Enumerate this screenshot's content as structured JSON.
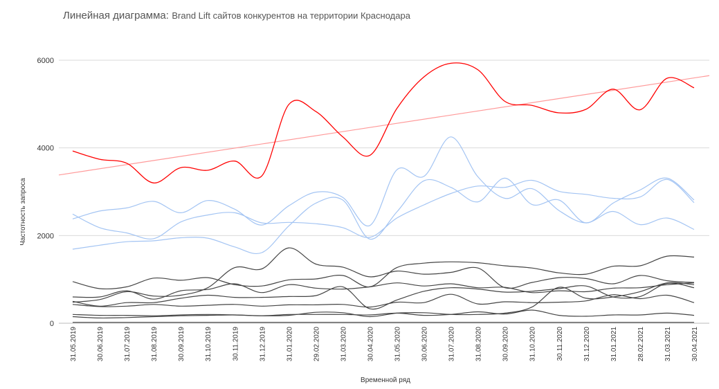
{
  "chart_title": "Линейная диаграмма:",
  "chart_subtitle": "Brand Lift сайтов конкурентов на территории Краснодара",
  "chart_data": {
    "type": "line",
    "title": "Линейная диаграмма: Brand Lift сайтов конкурентов на территории Краснодара",
    "xlabel": "Временной ряд",
    "ylabel": "Частотность запроса",
    "ylim": [
      0,
      6000
    ],
    "yticks": [
      0,
      2000,
      4000,
      6000
    ],
    "grid": true,
    "legend": "none",
    "categories": [
      "31.05.2019",
      "30.06.2019",
      "31.07.2019",
      "31.08.2019",
      "30.09.2019",
      "31.10.2019",
      "30.11.2019",
      "31.12.2019",
      "31.01.2020",
      "29.02.2020",
      "31.03.2020",
      "30.04.2020",
      "31.05.2020",
      "30.06.2020",
      "31.07.2020",
      "31.08.2020",
      "30.09.2020",
      "31.10.2020",
      "30.11.2020",
      "31.12.2020",
      "31.01.2021",
      "28.02.2021",
      "31.03.2021",
      "30.04.2021"
    ],
    "series": [
      {
        "color": "#ff0000",
        "values": [
          3930,
          3740,
          3650,
          3200,
          3550,
          3490,
          3700,
          3360,
          4990,
          4830,
          4250,
          3830,
          4900,
          5620,
          5930,
          5780,
          5060,
          4970,
          4800,
          4880,
          5340,
          4870,
          5590,
          5370
        ]
      },
      {
        "color": "#ff9999",
        "trend": true,
        "values": [
          3430,
          3524,
          3618,
          3713,
          3807,
          3901,
          3995,
          4089,
          4183,
          4278,
          4372,
          4466,
          4560,
          4654,
          4748,
          4843,
          4937,
          5031,
          5125,
          5219,
          5313,
          5408,
          5502,
          5596
        ]
      },
      {
        "color": "#a3c4f3",
        "values": [
          2490,
          2180,
          2060,
          1930,
          2310,
          2470,
          2520,
          2290,
          2300,
          2270,
          2180,
          1960,
          2400,
          2700,
          2960,
          3130,
          3100,
          3260,
          3010,
          2940,
          2850,
          2880,
          3280,
          2750
        ]
      },
      {
        "color": "#a3c4f3",
        "values": [
          2380,
          2560,
          2630,
          2780,
          2520,
          2800,
          2600,
          2240,
          2680,
          2990,
          2870,
          2230,
          3500,
          3350,
          4250,
          3340,
          2850,
          3070,
          2570,
          2290,
          2550,
          2250,
          2400,
          2140
        ]
      },
      {
        "color": "#a3c4f3",
        "values": [
          1690,
          1780,
          1860,
          1880,
          1950,
          1940,
          1740,
          1610,
          2220,
          2740,
          2810,
          1920,
          2540,
          3250,
          3100,
          2770,
          3310,
          2710,
          2810,
          2290,
          2740,
          3040,
          3310,
          2810
        ]
      },
      {
        "color": "#444444",
        "values": [
          950,
          790,
          830,
          1030,
          980,
          1040,
          880,
          850,
          990,
          1010,
          1090,
          830,
          1270,
          1370,
          1400,
          1380,
          1310,
          1260,
          1150,
          1120,
          1300,
          1310,
          1530,
          1510
        ]
      },
      {
        "color": "#444444",
        "values": [
          480,
          540,
          720,
          620,
          640,
          810,
          1270,
          1240,
          1720,
          1350,
          1280,
          1060,
          1190,
          1120,
          1160,
          1260,
          810,
          930,
          1040,
          1020,
          900,
          1090,
          970,
          930
        ]
      },
      {
        "color": "#444444",
        "values": [
          600,
          600,
          740,
          550,
          740,
          770,
          900,
          700,
          880,
          800,
          780,
          830,
          920,
          850,
          900,
          810,
          820,
          700,
          740,
          720,
          800,
          810,
          880,
          920
        ]
      },
      {
        "color": "#444444",
        "values": [
          500,
          390,
          470,
          470,
          570,
          640,
          590,
          590,
          610,
          630,
          830,
          330,
          530,
          730,
          810,
          780,
          710,
          730,
          790,
          850,
          600,
          610,
          910,
          810
        ]
      },
      {
        "color": "#444444",
        "values": [
          430,
          380,
          390,
          430,
          390,
          410,
          430,
          390,
          420,
          420,
          430,
          370,
          480,
          470,
          660,
          440,
          490,
          470,
          480,
          510,
          650,
          560,
          640,
          470
        ]
      },
      {
        "color": "#444444",
        "values": [
          200,
          180,
          180,
          170,
          190,
          200,
          190,
          170,
          200,
          200,
          200,
          190,
          230,
          180,
          200,
          260,
          210,
          300,
          180,
          160,
          190,
          190,
          230,
          180
        ]
      },
      {
        "color": "#444444",
        "values": [
          150,
          120,
          130,
          150,
          170,
          180,
          190,
          170,
          180,
          250,
          240,
          150,
          230,
          240,
          200,
          200,
          230,
          370,
          820,
          570,
          600,
          720,
          920,
          880
        ]
      },
      {
        "color": "#444444",
        "values": [
          20,
          20,
          20,
          20,
          20,
          20,
          20,
          20,
          20,
          20,
          20,
          20,
          20,
          20,
          20,
          20,
          20,
          20,
          20,
          20,
          20,
          20,
          20,
          20
        ]
      }
    ]
  }
}
